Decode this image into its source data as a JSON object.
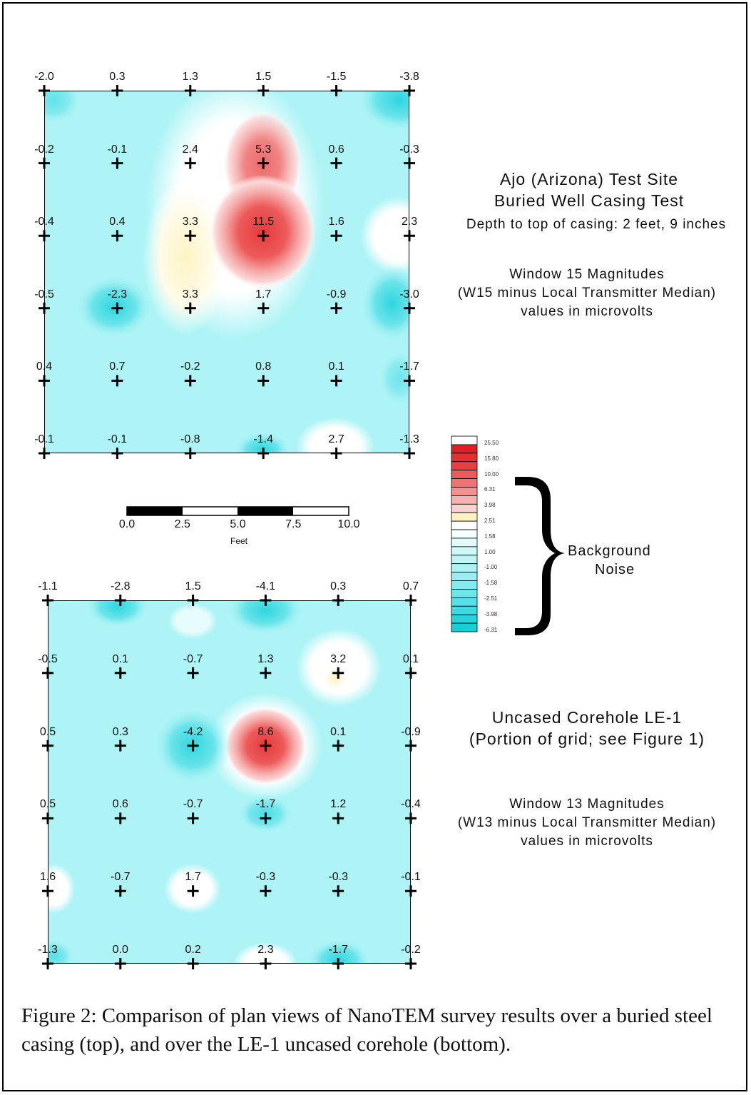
{
  "top_grid": {
    "values": [
      [
        "-2.0",
        "0.3",
        "1.3",
        "1.5",
        "-1.5",
        "-3.8"
      ],
      [
        "-0.2",
        "-0.1",
        "2.4",
        "5.3",
        "0.6",
        "-0.3"
      ],
      [
        "-0.4",
        "0.4",
        "3.3",
        "11.5",
        "1.6",
        "2.3"
      ],
      [
        "-0.5",
        "-2.3",
        "3.3",
        "1.7",
        "-0.9",
        "-3.0"
      ],
      [
        "0.4",
        "0.7",
        "-0.2",
        "0.8",
        "0.1",
        "-1.7"
      ],
      [
        "-0.1",
        "-0.1",
        "-0.8",
        "-1.4",
        "2.7",
        "-1.3"
      ]
    ]
  },
  "bottom_grid": {
    "values": [
      [
        "-1.1",
        "-2.8",
        "1.5",
        "-4.1",
        "0.3",
        "0.7"
      ],
      [
        "-0.5",
        "0.1",
        "-0.7",
        "1.3",
        "3.2",
        "0.1"
      ],
      [
        "0.5",
        "0.3",
        "-4.2",
        "8.6",
        "0.1",
        "-0.9"
      ],
      [
        "0.5",
        "0.6",
        "-0.7",
        "-1.7",
        "1.2",
        "-0.4"
      ],
      [
        "1.6",
        "-0.7",
        "1.7",
        "-0.3",
        "-0.3",
        "-0.1"
      ],
      [
        "-1.3",
        "0.0",
        "0.2",
        "2.3",
        "-1.7",
        "-0.2"
      ]
    ]
  },
  "top_text": {
    "line1": "Ajo (Arizona) Test Site",
    "line2": "Buried Well Casing Test",
    "line3": "Depth to top of casing: 2 feet, 9 inches",
    "line4": "Window 15 Magnitudes",
    "line5": "(W15 minus Local Transmitter Median)",
    "line6": "values in microvolts"
  },
  "bottom_text": {
    "line1": "Uncased Corehole  LE-1",
    "line2": "(Portion of grid; see Figure 1)",
    "line3": "Window 13 Magnitudes",
    "line4": "(W13 minus Local Transmitter Median)",
    "line5": "values in microvolts"
  },
  "scale_bar": {
    "ticks": [
      "0.0",
      "2.5",
      "5.0",
      "7.5",
      "10.0"
    ],
    "unit": "Feet"
  },
  "legend": {
    "labels": [
      "25.50",
      "15.80",
      "10.00",
      "6.31",
      "3.98",
      "2.51",
      "1.58",
      "1.00",
      "-1.00",
      "-1.58",
      "-2.51",
      "-3.98",
      "-6.31"
    ],
    "brace_label_1": "Background",
    "brace_label_2": "Noise"
  },
  "caption": {
    "text": "Figure 2:  Comparison of plan views of NanoTEM survey results over a buried steel casing (top), and over the LE-1 uncased corehole (bottom)."
  },
  "colors": {
    "base_cyan": "#aef4f6",
    "deep_cyan": "#2ed8e0",
    "white": "#ffffff",
    "yellow": "#fdf7c8",
    "pink": "#f8c2c2",
    "red": "#e63030"
  }
}
